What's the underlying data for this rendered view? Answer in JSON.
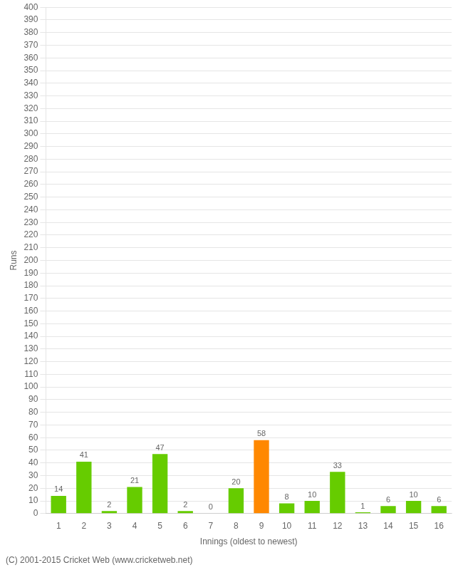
{
  "chart_data": {
    "type": "bar",
    "categories": [
      1,
      2,
      3,
      4,
      5,
      6,
      7,
      8,
      9,
      10,
      11,
      12,
      13,
      14,
      15,
      16
    ],
    "values": [
      14,
      41,
      2,
      21,
      47,
      2,
      0,
      20,
      58,
      8,
      10,
      33,
      1,
      6,
      10,
      6
    ],
    "colors": [
      "#66cc00",
      "#66cc00",
      "#66cc00",
      "#66cc00",
      "#66cc00",
      "#66cc00",
      "#66cc00",
      "#66cc00",
      "#ff8800",
      "#66cc00",
      "#66cc00",
      "#66cc00",
      "#66cc00",
      "#66cc00",
      "#66cc00",
      "#66cc00"
    ],
    "x_label": "Innings (oldest to newest)",
    "y_label": "Runs",
    "ylim": [
      0,
      400
    ],
    "yticks": [
      0,
      10,
      20,
      30,
      40,
      50,
      60,
      70,
      80,
      90,
      100,
      110,
      120,
      130,
      140,
      150,
      160,
      170,
      180,
      190,
      200,
      210,
      220,
      230,
      240,
      250,
      260,
      270,
      280,
      290,
      300,
      310,
      320,
      330,
      340,
      350,
      360,
      370,
      380,
      390,
      400
    ],
    "grid": "y",
    "data_labels": true,
    "annotations": [
      "(C) 2001-2015 Cricket Web (www.cricketweb.net)"
    ]
  }
}
